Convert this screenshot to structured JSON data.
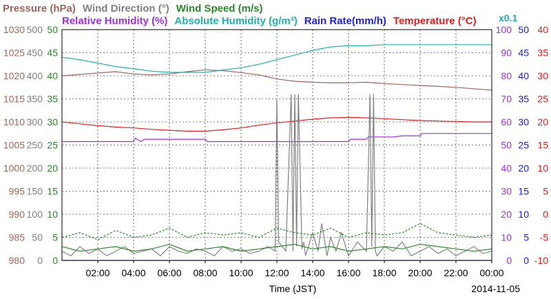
{
  "chart_data": {
    "type": "line",
    "title_rows": [
      [
        {
          "text": "Pressure (hPa)",
          "color": "#a0665e"
        },
        {
          "text": "Wind Direction (°)",
          "color": "#808080"
        },
        {
          "text": "Wind Speed (m/s)",
          "color": "#2a8a2a"
        }
      ],
      [
        {
          "text": "Relative Humidity (%)",
          "color": "#a030e0"
        },
        {
          "text": "Absolute Humidity (g/m³)",
          "color": "#20b0b0"
        },
        {
          "text": "Rain Rate(mm/h)",
          "color": "#2020e0"
        },
        {
          "text": "Temperature (°C)",
          "color": "#e02020"
        }
      ]
    ],
    "rain_scale_note": "x0.1",
    "xlabel": "Time (JST)",
    "date_label": "2014-11-05",
    "x_range_hours": [
      0,
      24
    ],
    "x_ticks": [
      "02:00",
      "04:00",
      "06:00",
      "08:00",
      "10:00",
      "12:00",
      "14:00",
      "16:00",
      "18:00",
      "20:00",
      "22:00",
      "00:00"
    ],
    "grid": true,
    "left_axes": [
      {
        "name": "Pressure",
        "unit": "hPa",
        "color": "#a0665e",
        "range": [
          980,
          1030
        ],
        "ticks": [
          "980",
          "985",
          "990",
          "995",
          "1000",
          "1005",
          "1010",
          "1015",
          "1020",
          "1025",
          "1030"
        ]
      },
      {
        "name": "Wind Direction",
        "unit": "°",
        "color": "#808080",
        "range": [
          0,
          500
        ],
        "ticks": [
          "0",
          "50",
          "100",
          "150",
          "200",
          "250",
          "300",
          "350",
          "400",
          "450",
          "500"
        ]
      },
      {
        "name": "Wind Speed",
        "unit": "m/s",
        "color": "#2a8a2a",
        "range": [
          0,
          50
        ],
        "ticks": [
          "0",
          "5",
          "10",
          "15",
          "20",
          "25",
          "30",
          "35",
          "40",
          "45",
          "50"
        ]
      }
    ],
    "right_axes": [
      {
        "name": "Relative Humidity",
        "unit": "%",
        "color": "#a030e0",
        "range": [
          0,
          100
        ],
        "ticks": [
          "0",
          "10",
          "20",
          "30",
          "40",
          "50",
          "60",
          "70",
          "80",
          "90",
          "100"
        ]
      },
      {
        "name": "Rain Rate",
        "unit": "mm/h",
        "color": "#2020e0",
        "range": [
          0,
          50
        ],
        "ticks": [
          "0",
          "5",
          "10",
          "15",
          "20",
          "25",
          "30",
          "35",
          "40",
          "45",
          "50"
        ]
      },
      {
        "name": "Temperature",
        "unit": "°C",
        "color": "#e02020",
        "range": [
          -10,
          40
        ],
        "ticks": [
          "-10",
          "-5",
          "0",
          "5",
          "10",
          "15",
          "20",
          "25",
          "30",
          "35",
          "40"
        ]
      }
    ],
    "series": [
      {
        "name": "Pressure",
        "color": "#a0665e",
        "axis": "Pressure",
        "x": [
          0,
          1,
          2,
          3,
          4,
          5,
          6,
          7,
          8,
          9,
          10,
          11,
          12,
          13,
          14,
          15,
          16,
          17,
          18,
          19,
          20,
          21,
          22,
          23,
          24
        ],
        "y": [
          1020.0,
          1020.3,
          1020.6,
          1020.9,
          1020.4,
          1020.2,
          1020.4,
          1020.9,
          1021.3,
          1021.1,
          1020.7,
          1020.2,
          1019.3,
          1018.8,
          1018.6,
          1018.5,
          1018.5,
          1018.6,
          1018.3,
          1018.1,
          1017.9,
          1017.7,
          1017.5,
          1017.2,
          1016.9
        ]
      },
      {
        "name": "Absolute Humidity",
        "color": "#20b0b0",
        "axis": "Relative Humidity",
        "x": [
          0,
          1,
          2,
          3,
          4,
          5,
          6,
          7,
          8,
          9,
          10,
          11,
          12,
          13,
          14,
          15,
          16,
          17,
          18,
          19,
          20,
          21,
          22,
          23,
          24
        ],
        "y": [
          88.0,
          87.0,
          85.5,
          84.0,
          83.0,
          82.0,
          81.5,
          81.5,
          81.5,
          82.5,
          83.5,
          85.0,
          87.0,
          89.0,
          91.0,
          92.5,
          93.0,
          93.0,
          93.5,
          93.5,
          93.5,
          93.5,
          93.5,
          93.5,
          93.5
        ]
      },
      {
        "name": "Temperature",
        "color": "#e02020",
        "axis": "Temperature",
        "x": [
          0,
          1,
          2,
          3,
          4,
          5,
          6,
          7,
          8,
          9,
          10,
          11,
          12,
          13,
          14,
          15,
          16,
          17,
          18,
          19,
          20,
          21,
          22,
          23,
          24
        ],
        "y": [
          20.0,
          19.6,
          19.2,
          18.9,
          18.7,
          18.4,
          18.2,
          18.0,
          18.0,
          18.3,
          18.7,
          19.3,
          19.8,
          20.2,
          20.6,
          20.9,
          21.0,
          20.9,
          20.7,
          20.5,
          20.3,
          20.2,
          20.1,
          20.0,
          20.0
        ]
      },
      {
        "name": "Relative Humidity",
        "color": "#a030e0",
        "axis": "Relative Humidity",
        "x": [
          0,
          4,
          4.1,
          4.4,
          4.6,
          8,
          8.1,
          12,
          16,
          16.1,
          17,
          17.1,
          18.5,
          19,
          19.5,
          20,
          20.1,
          24
        ],
        "y": [
          51.5,
          51.5,
          53,
          51.5,
          52.5,
          52.5,
          51.5,
          51.5,
          51.5,
          52.5,
          52.5,
          53.5,
          53.5,
          54,
          54,
          54,
          55,
          55
        ]
      },
      {
        "name": "Rain Rate",
        "color": "#2020e0",
        "axis": "Rain Rate",
        "x": [
          0,
          24
        ],
        "y": [
          0,
          0
        ]
      },
      {
        "name": "Wind Direction",
        "color": "#808080",
        "axis": "Wind Direction",
        "x": [
          0,
          0.5,
          1,
          1.5,
          2,
          2.5,
          3,
          3.5,
          4,
          4.5,
          5,
          5.5,
          6,
          6.5,
          7,
          7.5,
          8,
          8.5,
          9,
          9.5,
          10,
          10.5,
          11,
          11.5,
          11.9,
          12.0,
          12.1,
          12.5,
          12.8,
          12.9,
          13.0,
          13.1,
          13.2,
          13.4,
          13.5,
          13.6,
          14.0,
          14.3,
          14.5,
          14.8,
          15.0,
          15.3,
          15.6,
          16.0,
          16.5,
          17.0,
          17.2,
          17.3,
          17.4,
          17.5,
          17.6,
          18.0,
          18.5,
          19.0,
          19.5,
          20.0,
          20.5,
          21.0,
          21.5,
          22.0,
          22.5,
          23.0,
          23.5,
          24
        ],
        "y": [
          20,
          10,
          30,
          15,
          25,
          10,
          20,
          30,
          15,
          20,
          25,
          10,
          30,
          20,
          15,
          25,
          20,
          10,
          30,
          20,
          25,
          15,
          20,
          30,
          20,
          350,
          40,
          20,
          360,
          20,
          360,
          30,
          360,
          25,
          40,
          10,
          60,
          20,
          80,
          10,
          50,
          20,
          60,
          10,
          40,
          20,
          360,
          30,
          360,
          20,
          10,
          30,
          20,
          40,
          10,
          20,
          30,
          15,
          25,
          10,
          20,
          30,
          15,
          20
        ]
      },
      {
        "name": "Wind Speed",
        "color": "#2a8a2a",
        "axis": "Wind Speed",
        "x": [
          0,
          1,
          2,
          3,
          4,
          5,
          6,
          7,
          8,
          9,
          10,
          11,
          12,
          13,
          14,
          15,
          16,
          17,
          18,
          19,
          20,
          21,
          22,
          23,
          24
        ],
        "y": [
          3,
          2,
          2.5,
          3,
          2,
          2.5,
          3.5,
          2,
          2.5,
          3,
          2,
          2.5,
          3,
          3.5,
          2.5,
          3,
          2,
          2.5,
          3,
          2.5,
          3.5,
          3,
          2.5,
          2,
          2.5
        ]
      },
      {
        "name": "Wind Speed Max",
        "color": "#2a8a2a",
        "axis": "Wind Speed",
        "dashed": true,
        "x": [
          0,
          1,
          2,
          3,
          4,
          5,
          6,
          7,
          8,
          9,
          10,
          11,
          12,
          13,
          14,
          15,
          16,
          17,
          18,
          19,
          20,
          21,
          22,
          23,
          24
        ],
        "y": [
          5,
          6,
          4.5,
          6.5,
          5,
          5.5,
          7,
          5,
          6,
          5.5,
          6,
          5,
          7,
          6,
          5.5,
          7,
          5,
          6,
          5.5,
          6,
          8,
          6,
          5.5,
          5,
          5.5
        ]
      }
    ]
  }
}
